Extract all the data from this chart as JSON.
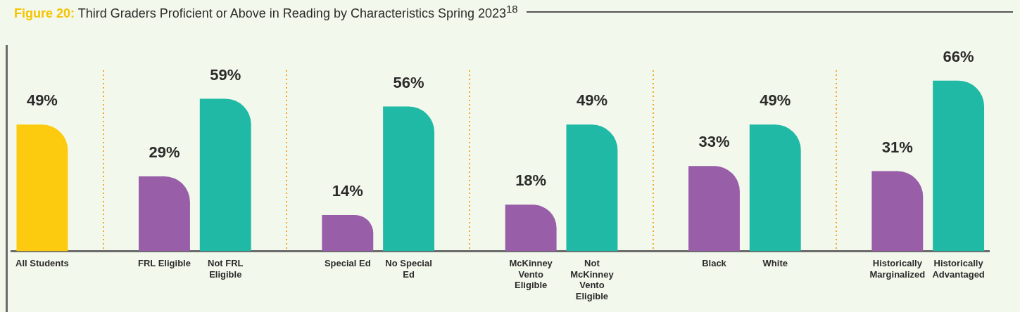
{
  "chart_data": {
    "type": "bar",
    "title": "Figure 20: Third Graders Proficient or Above in Reading by Characteristics Spring 2023$^{18}$",
    "categories": [
      "All Students",
      null,
      "FRL Eligible",
      "Not FRL Eligible",
      null,
      "Special Ed",
      "No Special Ed",
      null,
      "McKinney Vento Eligible",
      "Not McKinney Vento Eligible",
      null,
      "Black",
      "White",
      null,
      "Historically Marginalized",
      "Historically Advantaged"
    ],
    "values": [
      49,
      null,
      29,
      59,
      null,
      14,
      56,
      null,
      18,
      49,
      null,
      33,
      49,
      null,
      31,
      66
    ],
    "colors": [
      "#fccb0f",
      "#ffffff",
      "#985ea8",
      "#20b9a6",
      "#ffffff",
      "#985ea8",
      "#20b9a6",
      "#ffffff",
      "#985ea8",
      "#20b9a6",
      "#ffffff",
      "#985ea8",
      "#20b9a6",
      "#ffffff",
      "#985ea8",
      "#20b9a6"
    ],
    "value_labels": [
      "49%",
      null,
      "29%",
      "59%",
      null,
      "14%",
      "56%",
      null,
      "18%",
      "49%",
      null,
      "33%",
      "49%",
      null,
      "31%",
      "66%"
    ],
    "tick_labels": "x",
    "grid": "x",
    "legend": false
  }
}
